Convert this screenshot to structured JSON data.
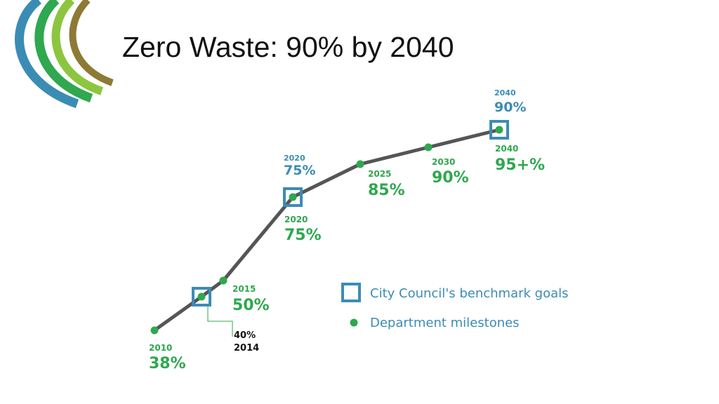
{
  "slide": {
    "title": "Zero Waste: 90% by 2040"
  },
  "colors": {
    "line": "#555555",
    "milestone": "#2fa84f",
    "benchmark": "#3b8cb5",
    "logo_arcs": [
      "#3b8cb5",
      "#2fa84f",
      "#8cc63f",
      "#8d7a35"
    ]
  },
  "chart_data": {
    "type": "line",
    "title": "",
    "xlabel": "",
    "ylabel": "",
    "x": [
      2010,
      2014,
      2015,
      2020,
      2025,
      2030,
      2040
    ],
    "y": [
      38,
      40,
      50,
      75,
      85,
      90,
      95
    ],
    "milestones": [
      {
        "year": 2010,
        "year_label": "2010",
        "value_label": "38%"
      },
      {
        "year": 2014,
        "year_label": "2014",
        "value_label": "40%"
      },
      {
        "year": 2015,
        "year_label": "2015",
        "value_label": "50%"
      },
      {
        "year": 2020,
        "year_label": "2020",
        "value_label": "75%"
      },
      {
        "year": 2025,
        "year_label": "2025",
        "value_label": "85%"
      },
      {
        "year": 2030,
        "year_label": "2030",
        "value_label": "90%"
      },
      {
        "year": 2040,
        "year_label": "2040",
        "value_label": "95+%"
      }
    ],
    "benchmarks": [
      {
        "year": 2014,
        "value": 40,
        "year_label": "",
        "value_label": ""
      },
      {
        "year": 2020,
        "value": 75,
        "year_label": "2020",
        "value_label": "75%"
      },
      {
        "year": 2040,
        "value": 90,
        "year_label": "2040",
        "value_label": "90%"
      }
    ],
    "legend": {
      "position": "bottom-right",
      "benchmark_label": "City Council's benchmark goals",
      "milestone_label": "Department milestones"
    }
  }
}
